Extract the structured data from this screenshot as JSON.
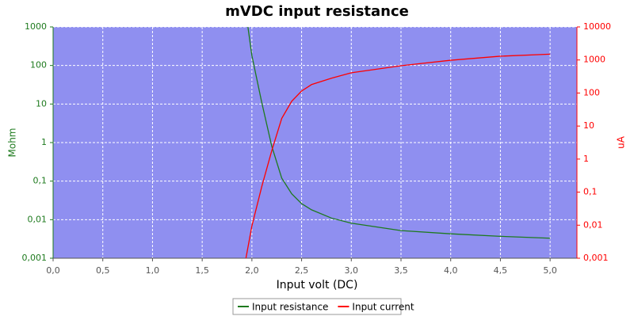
{
  "chart_data": {
    "type": "line",
    "title": "mVDC input resistance",
    "x_label": "Input volt (DC)",
    "y_label": "Mohm",
    "y2_label": "uA",
    "xlim": [
      0,
      5.27
    ],
    "xticks": [
      {
        "value": 0,
        "label": "0,0"
      },
      {
        "value": 0.5,
        "label": "0,5"
      },
      {
        "value": 1,
        "label": "1,0"
      },
      {
        "value": 1.5,
        "label": "1,5"
      },
      {
        "value": 2,
        "label": "2,0"
      },
      {
        "value": 2.5,
        "label": "2,5"
      },
      {
        "value": 3,
        "label": "3,0"
      },
      {
        "value": 3.5,
        "label": "3,5"
      },
      {
        "value": 4,
        "label": "4,0"
      },
      {
        "value": 4.5,
        "label": "4,5"
      },
      {
        "value": 5,
        "label": "5,0"
      }
    ],
    "ylim": [
      0.001,
      1000
    ],
    "y_log": true,
    "yticks": [
      {
        "value": 0.001,
        "label": "0,001"
      },
      {
        "value": 0.01,
        "label": "0,01"
      },
      {
        "value": 0.1,
        "label": "0,1"
      },
      1,
      10,
      100,
      1000
    ],
    "y2lim": [
      0.001,
      10000
    ],
    "y2_log": true,
    "y2ticks": [
      {
        "value": 0.001,
        "label": "0,001"
      },
      {
        "value": 0.01,
        "label": "0,01"
      },
      {
        "value": 0.1,
        "label": "0,1"
      },
      1,
      10,
      100,
      1000,
      10000
    ],
    "grid": true,
    "legend": "bottom",
    "series": [
      {
        "name": "Input resistance",
        "color": "#1e7a1e",
        "axis": "y",
        "x": [
          1.96,
          2.0,
          2.1,
          2.2,
          2.3,
          2.4,
          2.5,
          2.6,
          2.8,
          3.0,
          3.5,
          4.0,
          4.5,
          5.0
        ],
        "values": [
          1000,
          180,
          10.7,
          0.8,
          0.12,
          0.047,
          0.026,
          0.018,
          0.011,
          0.0081,
          0.0052,
          0.0043,
          0.0037,
          0.0033
        ]
      },
      {
        "name": "Input current",
        "color": "#ff0000",
        "axis": "y2",
        "x": [
          1.94,
          2.0,
          2.1,
          2.2,
          2.3,
          2.4,
          2.5,
          2.6,
          2.8,
          3.0,
          3.5,
          4.0,
          4.5,
          5.0
        ],
        "values": [
          0.001,
          0.0095,
          0.15,
          1.8,
          17,
          56,
          115,
          180,
          280,
          410,
          670,
          980,
          1300,
          1500
        ]
      }
    ]
  }
}
